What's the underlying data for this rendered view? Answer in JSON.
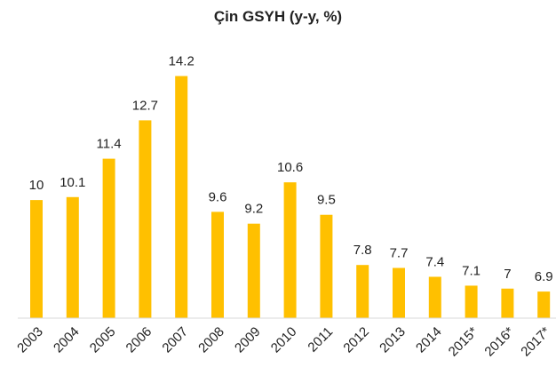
{
  "chart_data": {
    "type": "bar",
    "title": "Çin GSYH (y-y, %)",
    "categories": [
      "2003",
      "2004",
      "2005",
      "2006",
      "2007",
      "2008",
      "2009",
      "2010",
      "2011",
      "2012",
      "2013",
      "2014",
      "2015*",
      "2016*",
      "2017*"
    ],
    "values": [
      10,
      10.1,
      11.4,
      12.7,
      14.2,
      9.6,
      9.2,
      10.6,
      9.5,
      7.8,
      7.7,
      7.4,
      7.1,
      7,
      6.9
    ],
    "color": "#ffc000",
    "ylim": [
      6,
      15
    ]
  }
}
